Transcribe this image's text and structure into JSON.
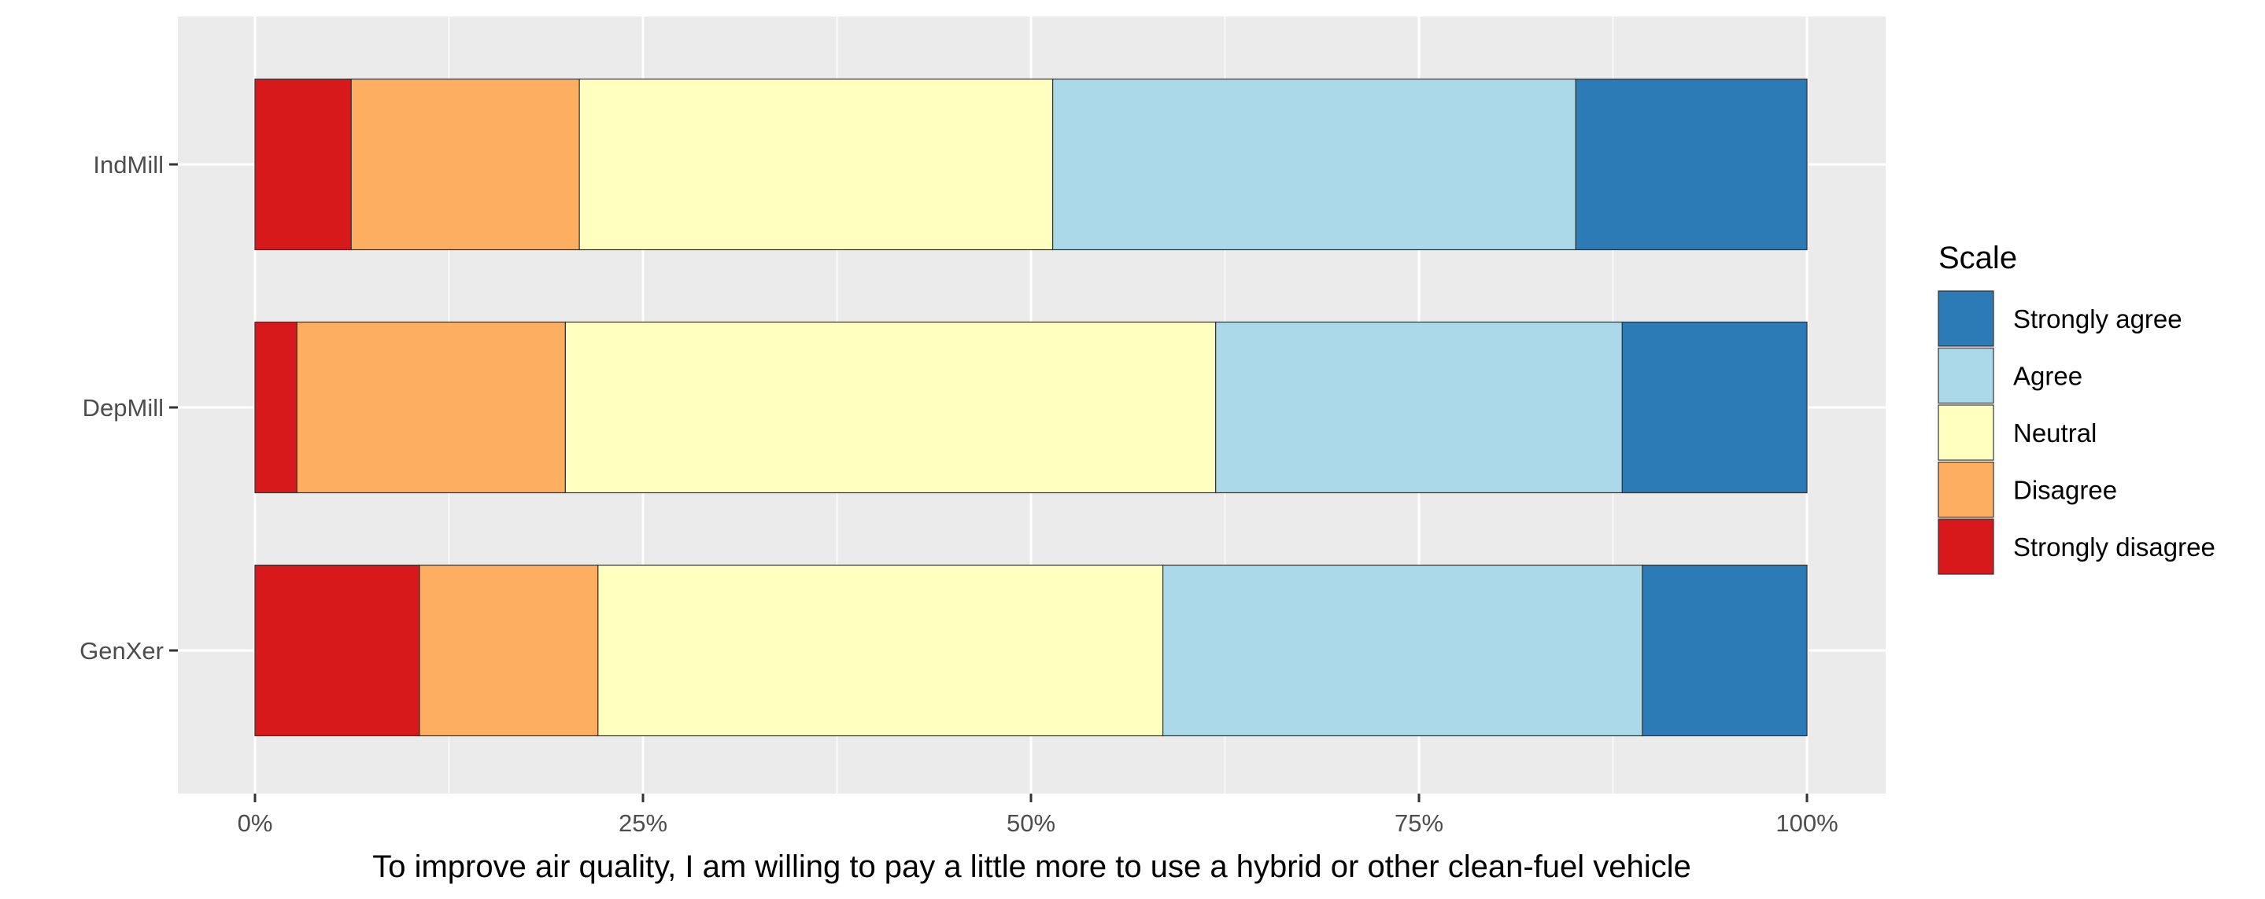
{
  "chart_data": {
    "type": "bar",
    "orientation": "horizontal",
    "stacked": "percent",
    "categories": [
      "IndMill",
      "DepMill",
      "GenXer"
    ],
    "series": [
      {
        "name": "Strongly disagree",
        "color": "#d7191c",
        "values": [
          6.2,
          2.7,
          10.6
        ]
      },
      {
        "name": "Disagree",
        "color": "#fdae61",
        "values": [
          14.7,
          17.3,
          11.5
        ]
      },
      {
        "name": "Neutral",
        "color": "#ffffbf",
        "values": [
          30.5,
          41.9,
          36.4
        ]
      },
      {
        "name": "Agree",
        "color": "#abd9e9",
        "values": [
          33.7,
          26.2,
          30.9
        ]
      },
      {
        "name": "Strongly agree",
        "color": "#2c7bb6",
        "values": [
          14.9,
          11.9,
          10.6
        ]
      }
    ],
    "xlabel": "To improve air quality, I am willing to pay a little more to use a hybrid or other clean-fuel vehicle",
    "ylabel": "",
    "xlim": [
      0,
      100
    ],
    "x_ticks": [
      0,
      25,
      50,
      75,
      100
    ],
    "x_tick_labels": [
      "0%",
      "25%",
      "50%",
      "75%",
      "100%"
    ],
    "grid": true,
    "panel_background": "#ebebeb",
    "legend": {
      "title": "Scale",
      "placement": "right",
      "items": [
        "Strongly agree",
        "Agree",
        "Neutral",
        "Disagree",
        "Strongly disagree"
      ]
    }
  }
}
